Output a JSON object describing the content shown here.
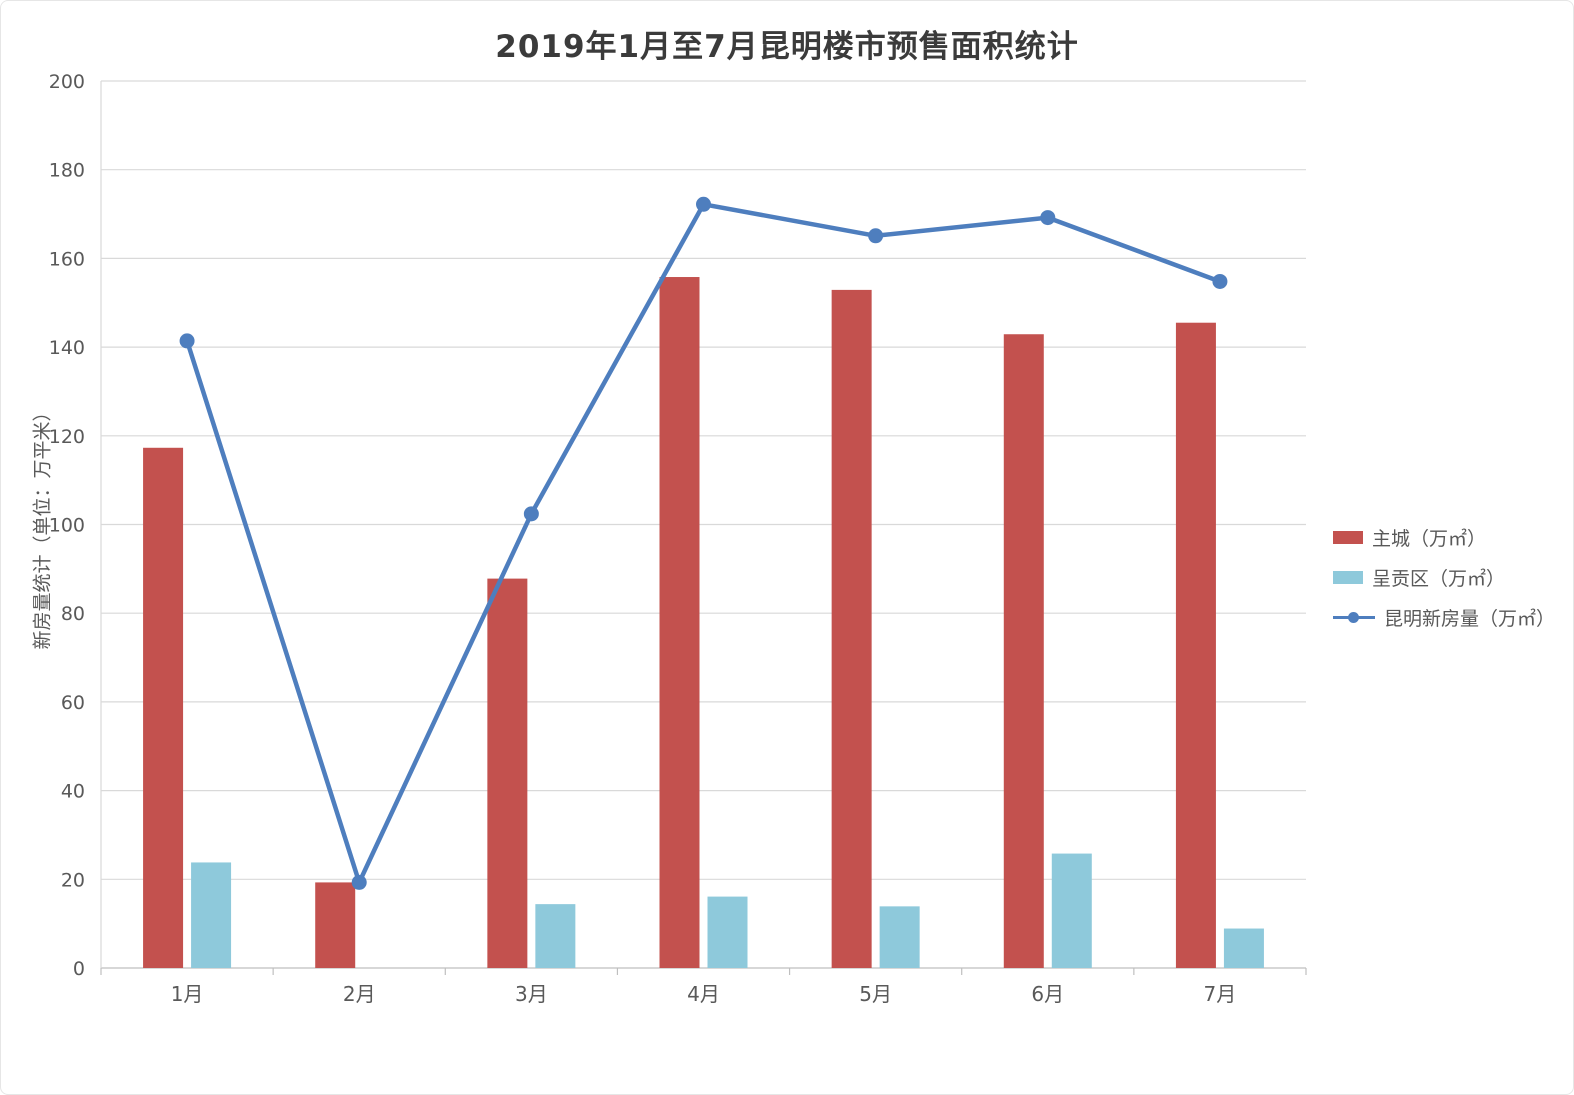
{
  "chart_data": {
    "type": "combo",
    "title": "2019年1月至7月昆明楼市预售面积统计",
    "ylabel": "新房量统计（单位：万平米）",
    "categories": [
      "1月",
      "2月",
      "3月",
      "4月",
      "5月",
      "6月",
      "7月"
    ],
    "ylim": [
      0,
      200
    ],
    "ytick_step": 20,
    "grid": true,
    "legend_position": "right",
    "series": [
      {
        "name": "主城（万㎡）",
        "type": "bar",
        "color": "#C3514E",
        "values": [
          117.3,
          19.3,
          87.8,
          155.8,
          152.9,
          142.9,
          145.5
        ]
      },
      {
        "name": "呈贡区（万㎡）",
        "type": "bar",
        "color": "#8EC9DB",
        "values": [
          23.8,
          0,
          14.4,
          16.1,
          13.9,
          25.8,
          8.9
        ]
      },
      {
        "name": "昆明新房量（万㎡）",
        "type": "line",
        "color": "#4E7EBE",
        "values": [
          141.4,
          19.3,
          102.4,
          172.2,
          165.1,
          169.2,
          154.8
        ]
      }
    ],
    "colors": {
      "gridline": "#D9D9D9",
      "axis": "#BFBFBF",
      "tick_label": "#595959",
      "title": "#3B3B3B"
    }
  }
}
